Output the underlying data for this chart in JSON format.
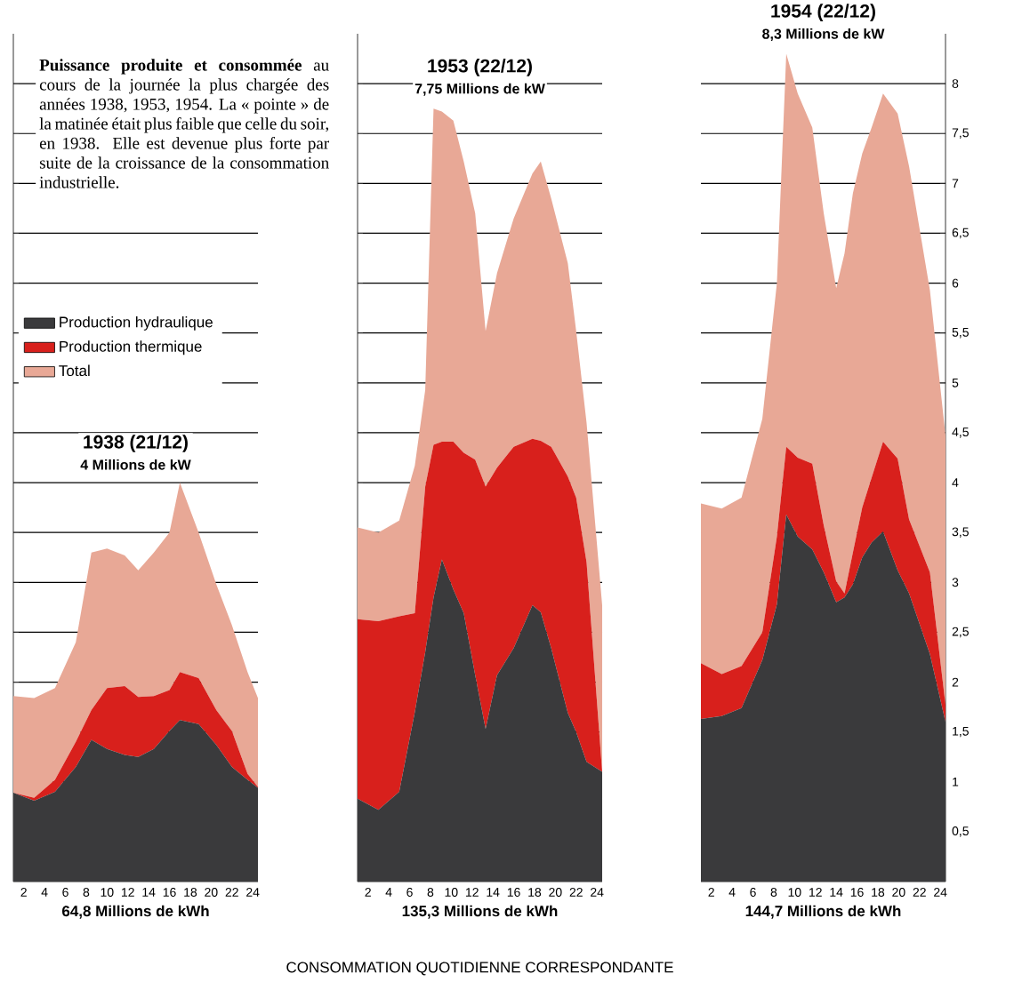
{
  "chart_data": [
    {
      "type": "area",
      "stacked": true,
      "title": "1938 (21/12)",
      "subtitle": "4 Millions de kW",
      "xlabel": "64,8 Millions de kWh",
      "annotations": [
        "**Puissance produite et consommée** au cours de la journée la plus chargée des années 1938, 1953, 1954. La « pointe » de la matinée était plus faible que celle du soir, en 1938. Elle est devenue plus forte par suite de la croissance de la consommation industrielle."
      ],
      "x": [
        1,
        3,
        5,
        7,
        8.5,
        10,
        11.7,
        13,
        14.5,
        16,
        17,
        18.8,
        20.5,
        22,
        23.5,
        24.5
      ],
      "series": [
        {
          "name": "Production hydraulique",
          "color": "#3a3a3c",
          "values": [
            0.89,
            0.81,
            0.9,
            1.15,
            1.42,
            1.33,
            1.27,
            1.25,
            1.33,
            1.51,
            1.62,
            1.58,
            1.37,
            1.15,
            1.02,
            0.94
          ]
        },
        {
          "name": "Production thermique",
          "color": "#d8201c",
          "values": [
            0,
            0.03,
            0.12,
            0.25,
            0.3,
            0.61,
            0.69,
            0.6,
            0.53,
            0.41,
            0.48,
            0.46,
            0.35,
            0.36,
            0.06,
            0.01
          ]
        },
        {
          "name": "Total",
          "color": "#e8a896",
          "values": [
            0.97,
            1.0,
            0.92,
            1.0,
            1.58,
            1.4,
            1.31,
            1.27,
            1.44,
            1.58,
            1.9,
            1.46,
            1.26,
            1.06,
            1.02,
            0.89
          ]
        }
      ],
      "xlim": [
        1,
        24.5
      ],
      "xticks": [
        2,
        4,
        6,
        8,
        10,
        12,
        14,
        16,
        18,
        20,
        22,
        24
      ],
      "ylim": [
        0,
        8.5
      ],
      "yticks": [
        0.5,
        1,
        1.5,
        2,
        2.5,
        3,
        3.5,
        4,
        4.5,
        5,
        5.5,
        6,
        6.5,
        7,
        7.5,
        8
      ],
      "grid": "y",
      "legend": "left",
      "tick_labels": "x"
    },
    {
      "type": "area",
      "stacked": true,
      "title": "1953 (22/12)",
      "subtitle": "7,75 Millions de kW",
      "xlabel": "135,3 Millions de kWh",
      "annotations": [
        "CONSOMMATION QUOTIDIENNE CORRESPONDANTE"
      ],
      "x": [
        1,
        3,
        5,
        6.5,
        7.5,
        8.3,
        9.1,
        10.2,
        11.2,
        12.3,
        13.3,
        14.4,
        16,
        17.8,
        18.6,
        19.6,
        21.2,
        22,
        23,
        24.5
      ],
      "series": [
        {
          "color": "#3a3a3c",
          "values": [
            0.83,
            0.72,
            0.9,
            1.7,
            2.3,
            2.85,
            3.23,
            2.93,
            2.69,
            2.07,
            1.53,
            2.07,
            2.34,
            2.77,
            2.7,
            2.34,
            1.69,
            1.5,
            1.2,
            1.1
          ]
        },
        {
          "color": "#d8201c",
          "values": [
            1.8,
            1.89,
            1.76,
            0.99,
            1.66,
            1.53,
            1.18,
            1.48,
            1.61,
            2.16,
            2.43,
            2.08,
            2.02,
            1.67,
            1.72,
            2.02,
            2.37,
            2.35,
            2.0,
            0
          ]
        },
        {
          "color": "#e8a896",
          "values": [
            0.92,
            0.89,
            0.96,
            1.48,
            0.97,
            3.37,
            3.31,
            3.22,
            2.92,
            2.47,
            1.56,
            1.95,
            2.29,
            2.66,
            2.8,
            2.49,
            2.14,
            1.67,
            1.4,
            1.67
          ]
        }
      ],
      "xlim": [
        1,
        24.5
      ],
      "xticks": [
        2,
        4,
        6,
        8,
        10,
        12,
        14,
        16,
        18,
        20,
        22,
        24
      ],
      "ylim": [
        0,
        8.5
      ],
      "yticks": [
        0.5,
        1,
        1.5,
        2,
        2.5,
        3,
        3.5,
        4,
        4.5,
        5,
        5.5,
        6,
        6.5,
        7,
        7.5,
        8
      ],
      "grid": "y",
      "tick_labels": "x"
    },
    {
      "type": "area",
      "stacked": true,
      "title": "1954 (22/12)",
      "subtitle": "8,3 Millions de kW",
      "xlabel": "144,7 Millions de kWh",
      "x": [
        1,
        3,
        4.9,
        6.9,
        8.3,
        9.2,
        10.3,
        11.7,
        12.8,
        14,
        14.8,
        15.6,
        16.5,
        17.4,
        18.5,
        19.9,
        21,
        23,
        24.5
      ],
      "series": [
        {
          "color": "#3a3a3c",
          "values": [
            1.63,
            1.66,
            1.74,
            2.22,
            2.78,
            3.68,
            3.46,
            3.33,
            3.1,
            2.8,
            2.85,
            2.98,
            3.25,
            3.4,
            3.51,
            3.12,
            2.89,
            2.28,
            1.6
          ]
        },
        {
          "color": "#d8201c",
          "values": [
            0.56,
            0.42,
            0.42,
            0.28,
            0.68,
            0.68,
            0.79,
            0.86,
            0.47,
            0.21,
            0.04,
            0.32,
            0.5,
            0.65,
            0.9,
            1.12,
            0.74,
            0.82,
            0.17
          ]
        },
        {
          "color": "#e8a896",
          "values": [
            1.6,
            1.66,
            1.69,
            2.14,
            2.54,
            3.94,
            3.65,
            3.37,
            3.13,
            2.94,
            3.41,
            3.6,
            3.55,
            3.51,
            3.49,
            3.46,
            3.54,
            2.83,
            2.7
          ]
        }
      ],
      "xlim": [
        1,
        24.5
      ],
      "xticks": [
        2,
        4,
        6,
        8,
        10,
        12,
        14,
        16,
        18,
        20,
        22,
        24
      ],
      "ylim": [
        0,
        8.5
      ],
      "yticks": [
        {
          "value": 0.5,
          "label": "0,5"
        },
        1,
        {
          "value": 1.5,
          "label": "1,5"
        },
        2,
        {
          "value": 2.5,
          "label": "2,5"
        },
        3,
        {
          "value": 3.5,
          "label": "3,5"
        },
        4,
        {
          "value": 4.5,
          "label": "4,5"
        },
        5,
        {
          "value": 5.5,
          "label": "5,5"
        },
        6,
        {
          "value": 6.5,
          "label": "6,5"
        },
        7,
        {
          "value": 7.5,
          "label": "7,5"
        },
        8
      ],
      "grid": "y"
    }
  ]
}
